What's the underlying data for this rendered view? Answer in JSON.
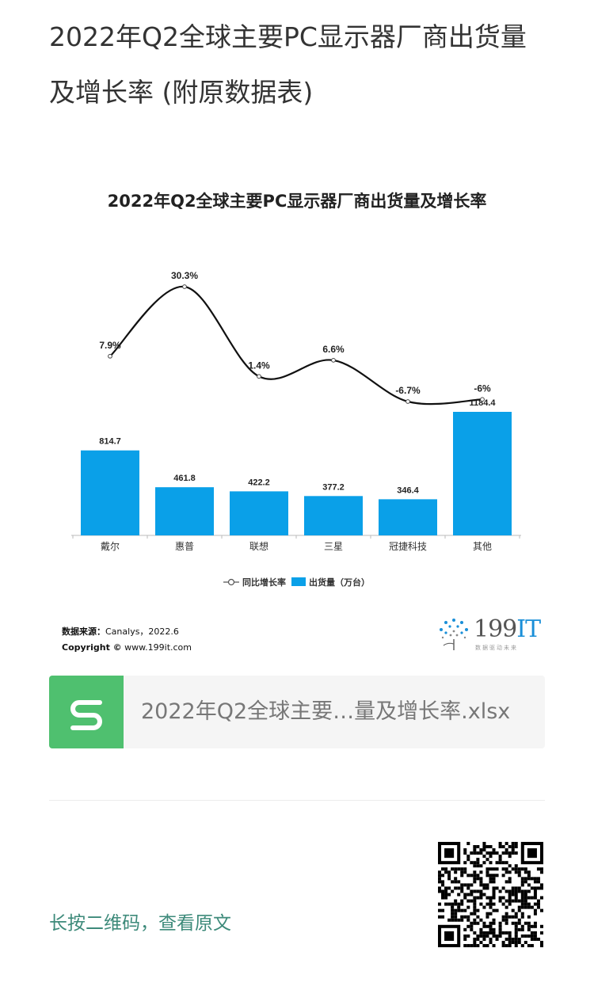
{
  "article": {
    "title": "2022年Q2全球主要PC显示器厂商出货量及增长率 (附原数据表)"
  },
  "chart_data": {
    "type": "bar",
    "title": "2022年Q2全球主要PC显示器厂商出货量及增长率",
    "categories": [
      "戴尔",
      "惠普",
      "联想",
      "三星",
      "冠捷科技",
      "其他"
    ],
    "series": [
      {
        "name": "出货量（万台）",
        "type": "bar",
        "values": [
          814.7,
          461.8,
          422.2,
          377.2,
          346.4,
          1184.4
        ],
        "labels": [
          "814.7",
          "461.8",
          "422.2",
          "377.2",
          "346.4",
          "1184.4"
        ],
        "color": "#0aa0e8"
      },
      {
        "name": "同比增长率",
        "type": "line",
        "values": [
          7.9,
          30.3,
          1.4,
          6.6,
          -6.7,
          -6.0
        ],
        "labels": [
          "7.9%",
          "30.3%",
          "1.4%",
          "6.6%",
          "-6.7%",
          "-6%"
        ],
        "color": "#111111"
      }
    ],
    "xlabel": "",
    "ylabel": "",
    "grid": false,
    "legend": "bottom-center"
  },
  "source": {
    "prefix": "数据来源：",
    "text": "Canalys，2022.6",
    "copyright_label": "Copyright ©",
    "copyright_site": "www.199it.com"
  },
  "logo": {
    "number": "199",
    "it": "IT",
    "tagline": "数据驱动未来"
  },
  "file": {
    "name": "2022年Q2全球主要…量及增长率.xlsx",
    "icon": "spreadsheet-icon",
    "color": "#4fc06f"
  },
  "qr": {
    "hint": "长按二维码，查看原文"
  }
}
